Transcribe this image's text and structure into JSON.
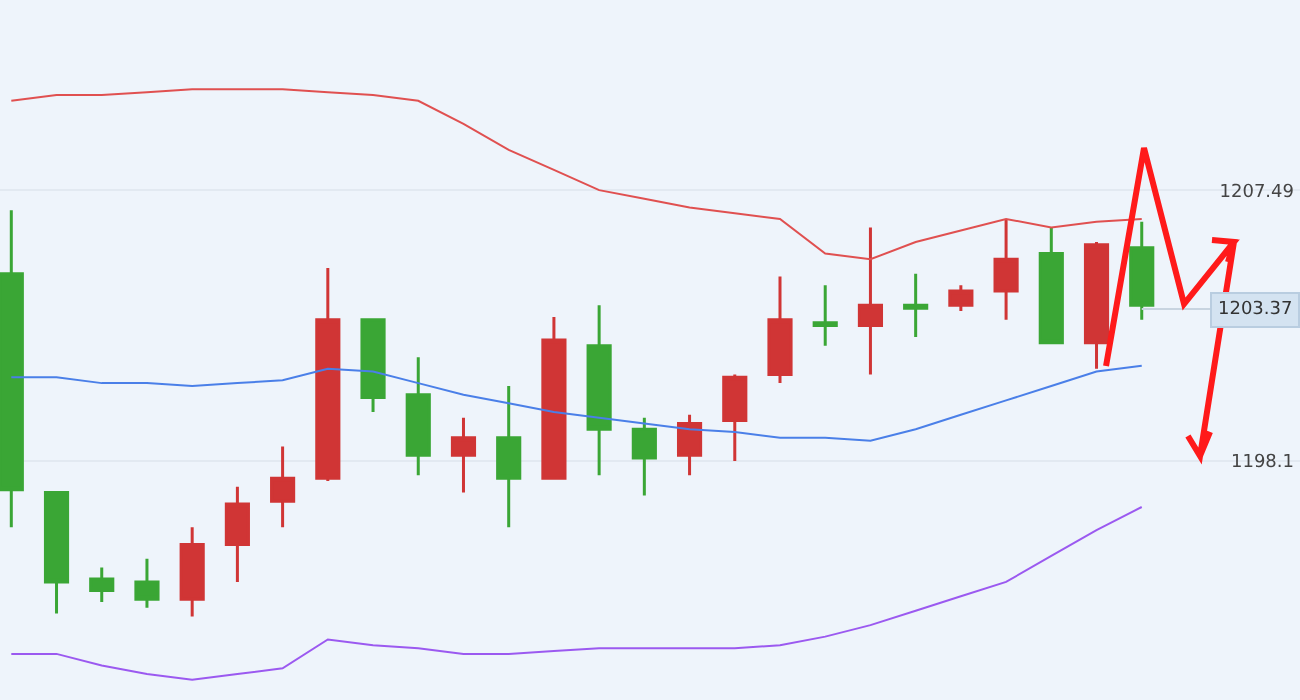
{
  "chart_data": {
    "type": "candlestick",
    "categories": [
      null,
      null,
      null,
      null,
      null,
      null,
      null,
      null,
      null,
      null,
      null,
      null,
      null,
      null,
      null,
      null,
      null,
      null,
      null,
      null,
      null,
      null,
      null,
      null,
      null,
      null
    ],
    "ohlc": [
      [
        1204.6,
        1206.8,
        1195.8,
        1197.1
      ],
      [
        1197.0,
        1197.0,
        1192.8,
        1193.9
      ],
      [
        1194.0,
        1194.4,
        1193.2,
        1193.6
      ],
      [
        1193.9,
        1194.7,
        1193.0,
        1193.3
      ],
      [
        1193.3,
        1195.8,
        1192.7,
        1195.2
      ],
      [
        1195.2,
        1197.2,
        1193.9,
        1196.6
      ],
      [
        1196.7,
        1198.6,
        1195.8,
        1197.5
      ],
      [
        1197.5,
        1204.8,
        1197.4,
        1203.0
      ],
      [
        1203.0,
        1203.0,
        1199.8,
        1200.3
      ],
      [
        1200.4,
        1201.7,
        1197.6,
        1198.3
      ],
      [
        1198.3,
        1199.6,
        1197.0,
        1198.9
      ],
      [
        1198.9,
        1200.7,
        1195.8,
        1197.5
      ],
      [
        1197.5,
        1203.1,
        1197.5,
        1202.3
      ],
      [
        1202.1,
        1203.5,
        1197.6,
        1199.2
      ],
      [
        1199.2,
        1199.6,
        1196.9,
        1198.2
      ],
      [
        1198.3,
        1199.7,
        1197.6,
        1199.4
      ],
      [
        1199.5,
        1201.1,
        1198.1,
        1201.0
      ],
      [
        1201.1,
        1204.5,
        1200.8,
        1203.0
      ],
      [
        1202.9,
        1204.2,
        1202.1,
        1202.8
      ],
      [
        1202.8,
        1206.2,
        1201.1,
        1203.5
      ],
      [
        1203.5,
        1204.6,
        1202.4,
        1203.4
      ],
      [
        1203.5,
        1204.2,
        1203.3,
        1204.0
      ],
      [
        1204.0,
        1206.5,
        1203.0,
        1205.1
      ],
      [
        1205.3,
        1206.2,
        1202.2,
        1202.2
      ],
      [
        1202.2,
        1205.7,
        1201.3,
        1205.6
      ],
      [
        1205.5,
        1206.4,
        1203.0,
        1203.5
      ]
    ],
    "colors": [
      "#3aa635",
      "#3aa635",
      "#3aa635",
      "#3aa635",
      "#d03535",
      "#d03535",
      "#d03535",
      "#d03535",
      "#3aa635",
      "#3aa635",
      "#d03535",
      "#3aa635",
      "#d03535",
      "#3aa635",
      "#3aa635",
      "#d03535",
      "#d03535",
      "#d03535",
      "#3aa635",
      "#d03535",
      "#3aa635",
      "#d03535",
      "#d03535",
      "#3aa635",
      "#d03535",
      "#3aa635"
    ],
    "series": [
      {
        "type": "line",
        "color": "#e05050",
        "values": [
          1210.6,
          1210.8,
          1210.8,
          1210.9,
          1211.0,
          1211.0,
          1211.0,
          1210.9,
          1210.8,
          1210.6,
          1209.8,
          1208.9,
          1208.2,
          1207.5,
          1207.2,
          1206.9,
          1206.7,
          1206.5,
          1205.3,
          1205.1,
          1205.7,
          1206.1,
          1206.5,
          1206.2,
          1206.4,
          1206.5
        ]
      },
      {
        "type": "line",
        "color": "#4a7fe8",
        "values": [
          1201.0,
          1201.0,
          1200.8,
          1200.8,
          1200.7,
          1200.8,
          1200.9,
          1201.3,
          1201.2,
          1200.8,
          1200.4,
          1200.1,
          1199.8,
          1199.6,
          1199.4,
          1199.2,
          1199.1,
          1198.9,
          1198.9,
          1198.8,
          1199.2,
          1199.7,
          1200.2,
          1200.7,
          1201.2,
          1201.4
        ]
      },
      {
        "type": "line",
        "color": "#9b59f0",
        "values": [
          1191.4,
          1191.4,
          1191.0,
          1190.7,
          1190.5,
          1190.7,
          1190.9,
          1191.9,
          1191.7,
          1191.6,
          1191.4,
          1191.4,
          1191.5,
          1191.6,
          1191.6,
          1191.6,
          1191.6,
          1191.7,
          1192.0,
          1192.4,
          1192.9,
          1193.4,
          1193.9,
          1194.8,
          1195.7,
          1196.5
        ]
      }
    ],
    "ylim": [
      1189.8,
      1214.1
    ],
    "yticks": [
      1207.49,
      1198.1
    ],
    "ref_lines": [
      {
        "axis": "y",
        "value": 1203.37,
        "label": "1203.37",
        "color": "#c8d4e0"
      }
    ],
    "grid": "y"
  }
}
